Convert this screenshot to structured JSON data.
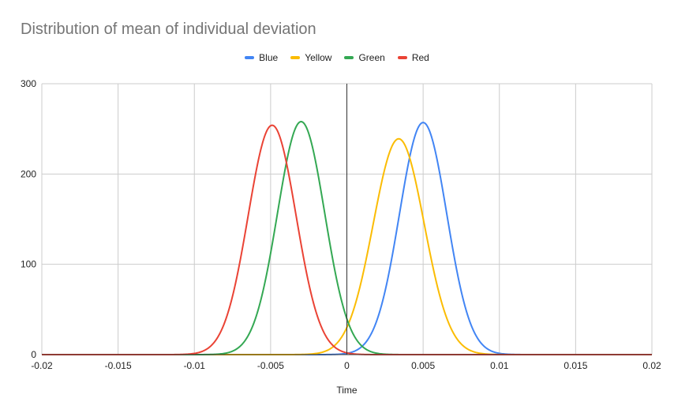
{
  "chart_data": {
    "type": "line",
    "title": "Distribution of mean of individual deviation",
    "xlabel": "Time",
    "ylabel": "",
    "xlim": [
      -0.02,
      0.02
    ],
    "ylim": [
      0,
      300
    ],
    "x_ticks": [
      "-0.02",
      "-0.015",
      "-0.01",
      "-0.005",
      "0",
      "0.005",
      "0.01",
      "0.015",
      "0.02"
    ],
    "y_ticks": [
      "0",
      "100",
      "200",
      "300"
    ],
    "grid": true,
    "legend_position": "top",
    "series": [
      {
        "name": "Blue",
        "color": "#4285f4",
        "mean": 0.005,
        "peak": 257,
        "sd": 0.00155
      },
      {
        "name": "Yellow",
        "color": "#fbbc04",
        "mean": 0.0034,
        "peak": 239,
        "sd": 0.00167
      },
      {
        "name": "Green",
        "color": "#34a853",
        "mean": -0.003,
        "peak": 258,
        "sd": 0.00155
      },
      {
        "name": "Red",
        "color": "#ea4335",
        "mean": -0.0049,
        "peak": 254,
        "sd": 0.00157
      }
    ]
  }
}
